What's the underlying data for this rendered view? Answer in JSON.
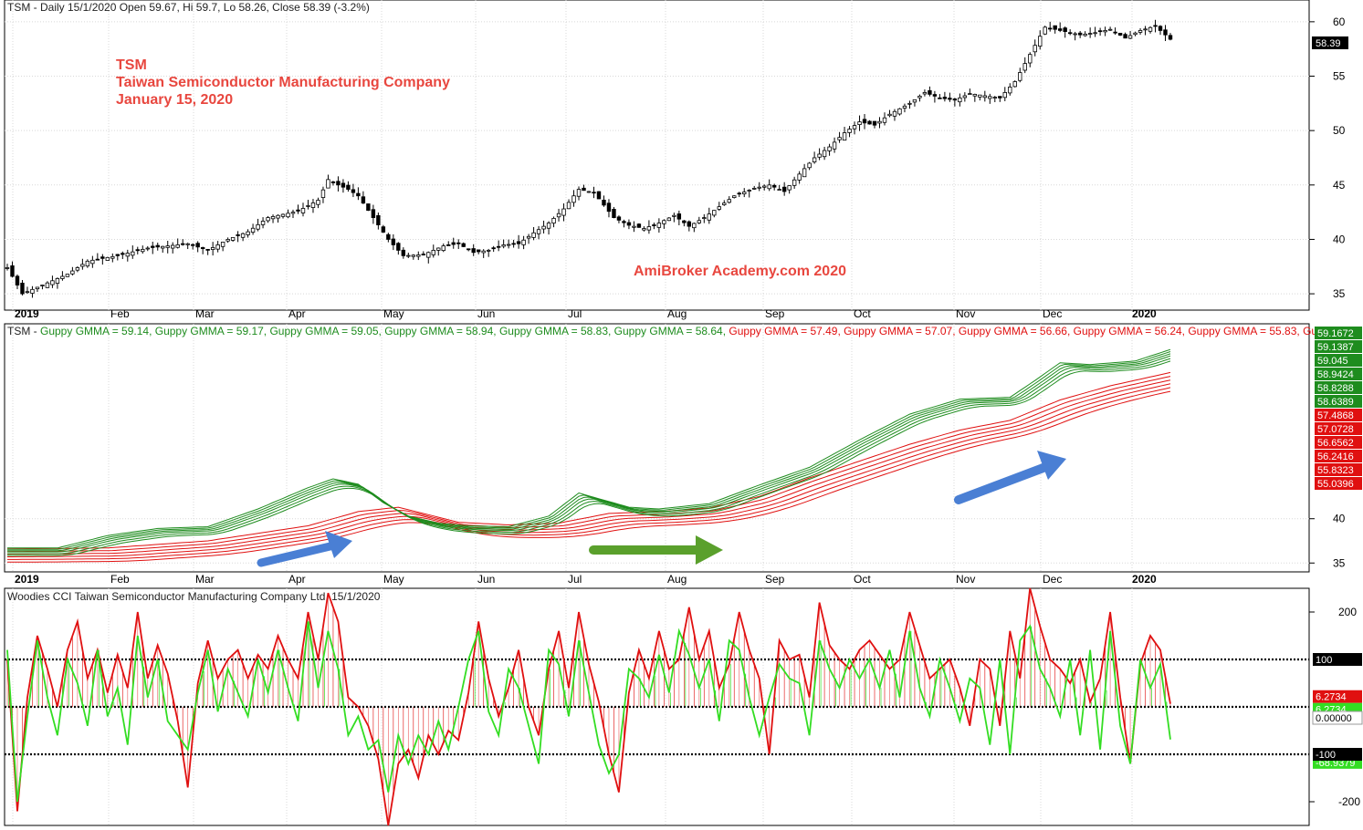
{
  "colors": {
    "up_green": "#1e8c1e",
    "down_red": "#e01010",
    "cci_green": "#33dd22",
    "arrow_blue": "#4a7fd4",
    "arrow_green": "#5aa02c",
    "annotation_red": "#e8473f",
    "grid": "#d8d8d8"
  },
  "panels": {
    "price": {
      "header": "TSM - Daily 15/1/2020 Open 59.67, Hi 59.7, Lo 58.26, Close 58.39 (-3.2%)",
      "last_price_badge": "58.39",
      "annotation": {
        "line1": "TSM",
        "line2": "Taiwan Semiconductor Manufacturing Company",
        "line3": "January 15, 2020"
      },
      "watermark": "AmiBroker Academy.com   2020",
      "y_ticks": [
        "60",
        "55",
        "50",
        "45",
        "40",
        "35"
      ]
    },
    "gmma": {
      "header_prefix": "TSM - ",
      "header_items": [
        {
          "text": "Guppy GMMA = 59.14, ",
          "color": "green"
        },
        {
          "text": "Guppy GMMA = 59.17, ",
          "color": "green"
        },
        {
          "text": "Guppy GMMA = 59.05, ",
          "color": "green"
        },
        {
          "text": "Guppy GMMA = 58.94, ",
          "color": "green"
        },
        {
          "text": "Guppy GMMA = 58.83, ",
          "color": "green"
        },
        {
          "text": "Guppy GMMA = 58.64, ",
          "color": "green"
        },
        {
          "text": "Guppy GMMA = 57.49, ",
          "color": "red"
        },
        {
          "text": "Guppy GMMA = 57.07, ",
          "color": "red"
        },
        {
          "text": "Guppy GMMA = 56.66, ",
          "color": "red"
        },
        {
          "text": "Guppy GMMA = 56.24, ",
          "color": "red"
        },
        {
          "text": "Guppy GMMA = 55.83, ",
          "color": "red"
        },
        {
          "text": "Guppy G",
          "color": "red"
        }
      ],
      "value_badges": [
        {
          "text": "59.1672",
          "color": "green"
        },
        {
          "text": "59.1387",
          "color": "green"
        },
        {
          "text": "59.045",
          "color": "green"
        },
        {
          "text": "58.9424",
          "color": "green"
        },
        {
          "text": "58.8288",
          "color": "green"
        },
        {
          "text": "58.6389",
          "color": "green"
        },
        {
          "text": "57.4868",
          "color": "red"
        },
        {
          "text": "57.0728",
          "color": "red"
        },
        {
          "text": "56.6562",
          "color": "red"
        },
        {
          "text": "56.2416",
          "color": "red"
        },
        {
          "text": "55.8323",
          "color": "red"
        },
        {
          "text": "55.0396",
          "color": "red"
        }
      ],
      "y_ticks": [
        "40",
        "35"
      ]
    },
    "cci": {
      "header": "Woodies CCI  Taiwan Semiconductor Manufacturing Company Ltd. 15/1/2020",
      "y_ticks": [
        "200",
        "-200"
      ],
      "badges": [
        {
          "text": "100",
          "kind": "black"
        },
        {
          "text": "6.2734",
          "kind": "red"
        },
        {
          "text": "6.2734",
          "kind": "green"
        },
        {
          "text": "0.00000",
          "kind": "white"
        },
        {
          "text": "-68.9379",
          "kind": "green"
        },
        {
          "text": "-100",
          "kind": "black"
        }
      ]
    }
  },
  "x_axis": {
    "year_start": "2019",
    "year_end": "2020",
    "months": [
      "Feb",
      "Mar",
      "Apr",
      "May",
      "Jun",
      "Jul",
      "Aug",
      "Sep",
      "Oct",
      "Nov",
      "Dec"
    ]
  },
  "chart_data": {
    "type": "candlestick",
    "price_ylim": [
      33.5,
      62
    ],
    "price_series": [
      [
        0,
        37.4
      ],
      [
        3,
        35.0
      ],
      [
        8,
        36.0
      ],
      [
        12,
        36.8
      ],
      [
        16,
        38.0
      ],
      [
        22,
        38.5
      ],
      [
        28,
        39.2
      ],
      [
        32,
        39.4
      ],
      [
        36,
        39.6
      ],
      [
        40,
        39.0
      ],
      [
        44,
        40.0
      ],
      [
        48,
        40.7
      ],
      [
        52,
        42.0
      ],
      [
        58,
        42.6
      ],
      [
        62,
        43.6
      ],
      [
        64,
        45.5
      ],
      [
        66,
        45.0
      ],
      [
        68,
        44.6
      ],
      [
        70,
        44.0
      ],
      [
        73,
        42.0
      ],
      [
        76,
        40.0
      ],
      [
        79,
        38.5
      ],
      [
        83,
        38.6
      ],
      [
        87,
        39.4
      ],
      [
        90,
        39.6
      ],
      [
        93,
        38.8
      ],
      [
        96,
        39.0
      ],
      [
        99,
        39.5
      ],
      [
        102,
        39.6
      ],
      [
        105,
        40.6
      ],
      [
        108,
        41.5
      ],
      [
        111,
        42.8
      ],
      [
        114,
        44.6
      ],
      [
        117,
        44.3
      ],
      [
        121,
        42.0
      ],
      [
        124,
        41.3
      ],
      [
        127,
        41.0
      ],
      [
        130,
        41.5
      ],
      [
        133,
        42.2
      ],
      [
        136,
        41.2
      ],
      [
        139,
        42.0
      ],
      [
        142,
        43.0
      ],
      [
        145,
        44.0
      ],
      [
        149,
        44.7
      ],
      [
        152,
        45.0
      ],
      [
        155,
        44.4
      ],
      [
        158,
        46.0
      ],
      [
        161,
        47.5
      ],
      [
        164,
        48.5
      ],
      [
        167,
        49.8
      ],
      [
        170,
        50.8
      ],
      [
        173,
        50.5
      ],
      [
        176,
        51.5
      ],
      [
        180,
        52.5
      ],
      [
        183,
        53.5
      ],
      [
        186,
        53.0
      ],
      [
        189,
        52.8
      ],
      [
        192,
        53.4
      ],
      [
        195,
        53.2
      ],
      [
        198,
        53.0
      ],
      [
        201,
        54.5
      ],
      [
        204,
        57.0
      ],
      [
        207,
        59.5
      ],
      [
        210,
        59.2
      ],
      [
        214,
        58.8
      ],
      [
        217,
        59.0
      ],
      [
        220,
        59.3
      ],
      [
        223,
        58.5
      ],
      [
        226,
        59.2
      ],
      [
        229,
        59.6
      ],
      [
        232,
        58.39
      ]
    ],
    "gmma_ylim": [
      34,
      62
    ],
    "gmma_fast_series": [
      [
        0,
        36.4
      ],
      [
        10,
        36.4
      ],
      [
        20,
        37.8
      ],
      [
        30,
        38.6
      ],
      [
        40,
        38.8
      ],
      [
        50,
        40.8
      ],
      [
        60,
        43.2
      ],
      [
        65,
        44.2
      ],
      [
        70,
        43.6
      ],
      [
        75,
        41.5
      ],
      [
        80,
        40.0
      ],
      [
        86,
        39.2
      ],
      [
        92,
        38.9
      ],
      [
        100,
        38.8
      ],
      [
        108,
        40.0
      ],
      [
        114,
        42.6
      ],
      [
        119,
        41.8
      ],
      [
        124,
        41.0
      ],
      [
        130,
        40.8
      ],
      [
        140,
        41.4
      ],
      [
        150,
        43.5
      ],
      [
        160,
        45.5
      ],
      [
        170,
        48.6
      ],
      [
        180,
        51.5
      ],
      [
        190,
        53.2
      ],
      [
        200,
        53.4
      ],
      [
        205,
        55.3
      ],
      [
        210,
        57.3
      ],
      [
        216,
        57.1
      ],
      [
        225,
        57.5
      ],
      [
        232,
        58.8
      ]
    ],
    "gmma_slow_series": [
      [
        0,
        36.6
      ],
      [
        20,
        36.7
      ],
      [
        40,
        37.5
      ],
      [
        60,
        39.2
      ],
      [
        70,
        40.8
      ],
      [
        78,
        41.3
      ],
      [
        90,
        39.6
      ],
      [
        100,
        39.3
      ],
      [
        110,
        39.5
      ],
      [
        120,
        40.6
      ],
      [
        130,
        40.8
      ],
      [
        140,
        41.2
      ],
      [
        150,
        42.5
      ],
      [
        160,
        44.6
      ],
      [
        170,
        46.5
      ],
      [
        180,
        48.4
      ],
      [
        190,
        50.0
      ],
      [
        200,
        51.1
      ],
      [
        210,
        53.4
      ],
      [
        220,
        55.0
      ],
      [
        232,
        56.5
      ]
    ],
    "cci_ylim": [
      -250,
      250
    ],
    "cci_series": [
      [
        0,
        100
      ],
      [
        2,
        -220
      ],
      [
        4,
        20
      ],
      [
        6,
        150
      ],
      [
        8,
        80
      ],
      [
        10,
        0
      ],
      [
        12,
        120
      ],
      [
        14,
        180
      ],
      [
        16,
        60
      ],
      [
        18,
        120
      ],
      [
        20,
        30
      ],
      [
        22,
        110
      ],
      [
        24,
        40
      ],
      [
        26,
        200
      ],
      [
        28,
        60
      ],
      [
        30,
        130
      ],
      [
        32,
        70
      ],
      [
        34,
        -30
      ],
      [
        36,
        -170
      ],
      [
        38,
        50
      ],
      [
        40,
        140
      ],
      [
        42,
        60
      ],
      [
        44,
        100
      ],
      [
        46,
        120
      ],
      [
        48,
        60
      ],
      [
        50,
        110
      ],
      [
        52,
        80
      ],
      [
        54,
        150
      ],
      [
        56,
        100
      ],
      [
        58,
        60
      ],
      [
        60,
        200
      ],
      [
        62,
        100
      ],
      [
        64,
        240
      ],
      [
        66,
        180
      ],
      [
        68,
        20
      ],
      [
        70,
        0
      ],
      [
        72,
        -40
      ],
      [
        74,
        -110
      ],
      [
        76,
        -250
      ],
      [
        78,
        -120
      ],
      [
        80,
        -90
      ],
      [
        82,
        -150
      ],
      [
        84,
        -60
      ],
      [
        86,
        -100
      ],
      [
        88,
        -50
      ],
      [
        90,
        -70
      ],
      [
        92,
        30
      ],
      [
        94,
        180
      ],
      [
        96,
        60
      ],
      [
        98,
        -20
      ],
      [
        100,
        40
      ],
      [
        102,
        120
      ],
      [
        104,
        0
      ],
      [
        106,
        -60
      ],
      [
        108,
        80
      ],
      [
        110,
        160
      ],
      [
        112,
        40
      ],
      [
        114,
        200
      ],
      [
        116,
        90
      ],
      [
        118,
        10
      ],
      [
        120,
        -100
      ],
      [
        122,
        -180
      ],
      [
        124,
        30
      ],
      [
        126,
        120
      ],
      [
        128,
        60
      ],
      [
        130,
        160
      ],
      [
        132,
        80
      ],
      [
        134,
        100
      ],
      [
        136,
        210
      ],
      [
        138,
        100
      ],
      [
        140,
        160
      ],
      [
        142,
        40
      ],
      [
        144,
        90
      ],
      [
        146,
        200
      ],
      [
        148,
        120
      ],
      [
        150,
        60
      ],
      [
        152,
        -100
      ],
      [
        154,
        140
      ],
      [
        156,
        100
      ],
      [
        158,
        110
      ],
      [
        160,
        20
      ],
      [
        162,
        220
      ],
      [
        164,
        130
      ],
      [
        166,
        100
      ],
      [
        168,
        80
      ],
      [
        170,
        120
      ],
      [
        172,
        140
      ],
      [
        174,
        110
      ],
      [
        176,
        80
      ],
      [
        178,
        100
      ],
      [
        180,
        200
      ],
      [
        182,
        130
      ],
      [
        184,
        60
      ],
      [
        186,
        80
      ],
      [
        188,
        100
      ],
      [
        190,
        40
      ],
      [
        192,
        -40
      ],
      [
        194,
        100
      ],
      [
        196,
        80
      ],
      [
        198,
        -40
      ],
      [
        200,
        160
      ],
      [
        202,
        60
      ],
      [
        204,
        250
      ],
      [
        206,
        170
      ],
      [
        208,
        100
      ],
      [
        210,
        80
      ],
      [
        212,
        50
      ],
      [
        214,
        100
      ],
      [
        216,
        10
      ],
      [
        218,
        60
      ],
      [
        220,
        200
      ],
      [
        222,
        20
      ],
      [
        224,
        -120
      ],
      [
        226,
        90
      ],
      [
        228,
        150
      ],
      [
        230,
        120
      ],
      [
        232,
        6.2734
      ]
    ],
    "cci_turbo_series": [
      [
        0,
        120
      ],
      [
        2,
        -200
      ],
      [
        4,
        -20
      ],
      [
        6,
        140
      ],
      [
        8,
        20
      ],
      [
        10,
        -60
      ],
      [
        12,
        100
      ],
      [
        14,
        50
      ],
      [
        16,
        -40
      ],
      [
        18,
        120
      ],
      [
        20,
        -20
      ],
      [
        22,
        40
      ],
      [
        24,
        -80
      ],
      [
        26,
        150
      ],
      [
        28,
        20
      ],
      [
        30,
        100
      ],
      [
        32,
        -30
      ],
      [
        34,
        -60
      ],
      [
        36,
        -90
      ],
      [
        38,
        30
      ],
      [
        40,
        120
      ],
      [
        42,
        -10
      ],
      [
        44,
        80
      ],
      [
        46,
        30
      ],
      [
        48,
        -20
      ],
      [
        50,
        100
      ],
      [
        52,
        30
      ],
      [
        54,
        120
      ],
      [
        56,
        40
      ],
      [
        58,
        -30
      ],
      [
        60,
        180
      ],
      [
        62,
        40
      ],
      [
        64,
        160
      ],
      [
        66,
        80
      ],
      [
        68,
        -60
      ],
      [
        70,
        -20
      ],
      [
        72,
        -90
      ],
      [
        74,
        -70
      ],
      [
        76,
        -180
      ],
      [
        78,
        -60
      ],
      [
        80,
        -120
      ],
      [
        82,
        -60
      ],
      [
        84,
        -100
      ],
      [
        86,
        -30
      ],
      [
        88,
        -90
      ],
      [
        90,
        0
      ],
      [
        92,
        100
      ],
      [
        94,
        160
      ],
      [
        96,
        -10
      ],
      [
        98,
        -60
      ],
      [
        100,
        80
      ],
      [
        102,
        40
      ],
      [
        104,
        -40
      ],
      [
        106,
        -120
      ],
      [
        108,
        120
      ],
      [
        110,
        90
      ],
      [
        112,
        -20
      ],
      [
        114,
        140
      ],
      [
        116,
        30
      ],
      [
        118,
        -80
      ],
      [
        120,
        -140
      ],
      [
        122,
        -100
      ],
      [
        124,
        80
      ],
      [
        126,
        60
      ],
      [
        128,
        20
      ],
      [
        130,
        110
      ],
      [
        132,
        30
      ],
      [
        134,
        160
      ],
      [
        136,
        110
      ],
      [
        138,
        40
      ],
      [
        140,
        100
      ],
      [
        142,
        -30
      ],
      [
        144,
        140
      ],
      [
        146,
        120
      ],
      [
        148,
        20
      ],
      [
        150,
        -60
      ],
      [
        152,
        20
      ],
      [
        154,
        90
      ],
      [
        156,
        60
      ],
      [
        158,
        50
      ],
      [
        160,
        -60
      ],
      [
        162,
        140
      ],
      [
        164,
        80
      ],
      [
        166,
        40
      ],
      [
        168,
        100
      ],
      [
        170,
        60
      ],
      [
        172,
        100
      ],
      [
        174,
        40
      ],
      [
        176,
        120
      ],
      [
        178,
        20
      ],
      [
        180,
        160
      ],
      [
        182,
        40
      ],
      [
        184,
        -20
      ],
      [
        186,
        100
      ],
      [
        188,
        40
      ],
      [
        190,
        -30
      ],
      [
        192,
        60
      ],
      [
        194,
        40
      ],
      [
        196,
        -80
      ],
      [
        198,
        100
      ],
      [
        200,
        -100
      ],
      [
        202,
        140
      ],
      [
        204,
        170
      ],
      [
        206,
        80
      ],
      [
        208,
        40
      ],
      [
        210,
        -20
      ],
      [
        212,
        100
      ],
      [
        214,
        -60
      ],
      [
        216,
        120
      ],
      [
        218,
        -90
      ],
      [
        220,
        160
      ],
      [
        222,
        -40
      ],
      [
        224,
        -120
      ],
      [
        226,
        100
      ],
      [
        228,
        40
      ],
      [
        230,
        90
      ],
      [
        232,
        -68.9379
      ]
    ]
  }
}
